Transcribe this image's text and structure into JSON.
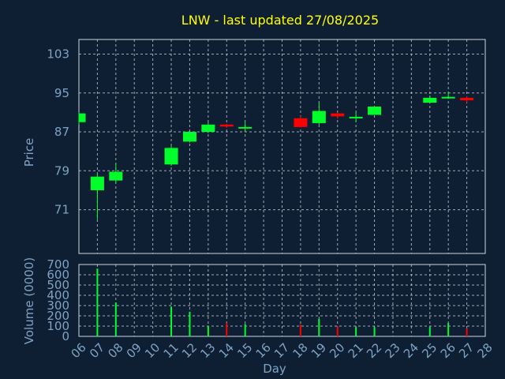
{
  "colors": {
    "background": "#0f1f33",
    "up": "#00ff2a",
    "down": "#ff0000",
    "text": "#7fa3c4",
    "title": "#ffff00",
    "grid": "#cfd6de"
  },
  "chart_data": {
    "type": "candlestick",
    "title": "LNW - last updated 27/08/2025",
    "xlabel": "Day",
    "ylabel_price": "Price",
    "ylabel_volume": "Volume (0000)",
    "price_ylim": [
      62.0,
      106.0
    ],
    "price_ticks": [
      "71",
      "79",
      "87",
      "95",
      "103"
    ],
    "volume_ylim": [
      0,
      700
    ],
    "volume_ticks": [
      "0",
      "100",
      "200",
      "300",
      "400",
      "500",
      "600",
      "700"
    ],
    "x_ticks": [
      "06",
      "07",
      "08",
      "09",
      "10",
      "11",
      "12",
      "13",
      "14",
      "15",
      "16",
      "17",
      "18",
      "19",
      "20",
      "21",
      "22",
      "23",
      "24",
      "25",
      "26",
      "27",
      "28"
    ],
    "grid": true,
    "candles": [
      {
        "day": "06",
        "open": 89.0,
        "high": 91.0,
        "low": 88.5,
        "close": 90.8,
        "volume": 0
      },
      {
        "day": "07",
        "open": 75.0,
        "high": 78.5,
        "low": 69.0,
        "close": 77.8,
        "volume": 660
      },
      {
        "day": "08",
        "open": 77.0,
        "high": 80.5,
        "low": 76.5,
        "close": 78.8,
        "volume": 330
      },
      {
        "day": "11",
        "open": 80.3,
        "high": 84.3,
        "low": 80.0,
        "close": 83.7,
        "volume": 290
      },
      {
        "day": "12",
        "open": 85.0,
        "high": 87.0,
        "low": 84.8,
        "close": 87.0,
        "volume": 240
      },
      {
        "day": "13",
        "open": 87.0,
        "high": 89.0,
        "low": 86.8,
        "close": 88.5,
        "volume": 100
      },
      {
        "day": "14",
        "open": 88.5,
        "high": 88.7,
        "low": 87.8,
        "close": 88.1,
        "volume": 130
      },
      {
        "day": "15",
        "open": 87.8,
        "high": 89.0,
        "low": 87.0,
        "close": 88.0,
        "volume": 120
      },
      {
        "day": "18",
        "open": 89.8,
        "high": 90.3,
        "low": 87.9,
        "close": 88.0,
        "volume": 115
      },
      {
        "day": "19",
        "open": 88.8,
        "high": 93.0,
        "low": 88.5,
        "close": 91.3,
        "volume": 170
      },
      {
        "day": "20",
        "open": 90.8,
        "high": 91.0,
        "low": 89.7,
        "close": 90.2,
        "volume": 95
      },
      {
        "day": "21",
        "open": 89.9,
        "high": 91.0,
        "low": 89.0,
        "close": 90.1,
        "volume": 90
      },
      {
        "day": "22",
        "open": 90.5,
        "high": 92.2,
        "low": 90.5,
        "close": 92.2,
        "volume": 90
      },
      {
        "day": "25",
        "open": 93.0,
        "high": 94.5,
        "low": 92.8,
        "close": 94.0,
        "volume": 90
      },
      {
        "day": "26",
        "open": 94.0,
        "high": 95.3,
        "low": 93.8,
        "close": 94.2,
        "volume": 130
      },
      {
        "day": "27",
        "open": 94.0,
        "high": 94.3,
        "low": 93.0,
        "close": 93.5,
        "volume": 80
      }
    ]
  }
}
